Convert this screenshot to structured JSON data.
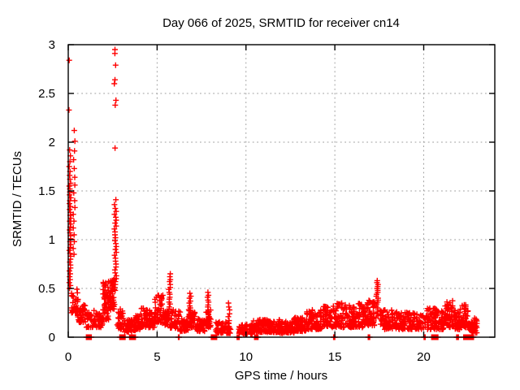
{
  "chart_data": {
    "type": "scatter",
    "title": "Day 066 of 2025, SRMTID for receiver cn14",
    "xlabel": "GPS time / hours",
    "ylabel": "SRMTID / TECUs",
    "xlim": [
      0,
      24
    ],
    "ylim": [
      0,
      3
    ],
    "xticks": [
      0,
      5,
      10,
      15,
      20
    ],
    "yticks": [
      0,
      0.5,
      1,
      1.5,
      2,
      2.5,
      3
    ],
    "grid": true,
    "legend": "none",
    "marker": {
      "shape": "plus",
      "color": "#ff0000",
      "size": 7
    },
    "axis_color": "#000000",
    "grid_color": "#9e9e9e",
    "seed": 20250066,
    "columns_format": "vertical spike columns: x center, x jitter, list of y values (TECUs)",
    "columns": [
      {
        "x": 0.07,
        "jitter": 0.03,
        "ys": [
          2.84,
          2.33
        ]
      },
      {
        "x": 0.1,
        "jitter": 0.05,
        "ys": [
          1.92,
          1.86,
          1.8,
          1.75,
          1.7,
          1.66,
          1.62,
          1.58,
          1.55,
          1.52,
          1.49,
          1.46,
          1.43,
          1.4,
          1.37,
          1.34,
          1.31,
          1.28,
          1.25,
          1.22,
          1.19,
          1.16,
          1.13,
          1.1,
          1.07,
          1.04,
          1.01,
          0.98,
          0.95,
          0.92,
          0.89,
          0.86,
          0.83,
          0.8,
          0.77,
          0.74,
          0.71,
          0.68,
          0.65,
          0.62,
          0.59,
          0.56,
          0.53,
          0.5
        ]
      },
      {
        "x": 0.33,
        "jitter": 0.05,
        "ys": [
          2.12,
          2.01,
          1.91,
          1.82,
          1.73,
          1.64,
          1.56,
          1.48,
          1.4,
          1.33,
          1.26,
          1.19,
          1.12,
          1.05,
          0.98,
          0.91,
          0.85
        ]
      },
      {
        "x": 2.65,
        "jitter": 0.06,
        "ys": [
          2.95,
          2.91,
          2.79,
          2.64,
          2.6,
          2.43,
          2.38,
          1.94,
          1.41,
          1.36,
          1.32,
          1.29,
          1.26,
          1.23,
          1.2,
          1.17,
          1.14,
          1.11,
          1.08,
          1.05,
          1.02,
          0.99,
          0.96,
          0.93,
          0.9,
          0.87,
          0.84,
          0.81,
          0.78,
          0.75,
          0.72,
          0.69,
          0.66,
          0.63,
          0.6,
          0.57,
          0.54,
          0.51,
          0.48
        ]
      },
      {
        "x": 5.7,
        "jitter": 0.06,
        "ys": [
          0.65,
          0.62,
          0.59,
          0.57,
          0.54,
          0.51,
          0.49,
          0.46,
          0.44,
          0.41,
          0.39,
          0.36,
          0.34,
          0.31,
          0.29,
          0.26,
          0.24,
          0.22
        ]
      },
      {
        "x": 6.85,
        "jitter": 0.07,
        "ys": [
          0.45,
          0.42,
          0.4,
          0.37,
          0.35,
          0.32,
          0.3,
          0.27,
          0.25,
          0.22,
          0.2
        ]
      },
      {
        "x": 7.88,
        "jitter": 0.05,
        "ys": [
          0.46,
          0.43,
          0.41,
          0.38,
          0.36,
          0.33,
          0.31,
          0.28,
          0.26,
          0.23,
          0.21,
          0.18
        ]
      },
      {
        "x": 9.05,
        "jitter": 0.05,
        "ys": [
          0.35,
          0.31,
          0.28,
          0.24,
          0.21,
          0.17,
          0.14,
          0.11
        ]
      },
      {
        "x": 17.38,
        "jitter": 0.07,
        "ys": [
          0.58,
          0.56,
          0.54,
          0.52,
          0.5,
          0.48,
          0.46,
          0.44,
          0.42,
          0.4,
          0.38,
          0.36,
          0.34,
          0.32,
          0.3,
          0.28,
          0.26,
          0.24,
          0.22,
          0.2
        ]
      }
    ],
    "bands_format": "dense noise envelope: [x_start, x_end, y_min, y_max, point_count]",
    "bands": [
      [
        0.18,
        0.55,
        0.25,
        0.5,
        30
      ],
      [
        0.5,
        1.0,
        0.15,
        0.33,
        40
      ],
      [
        1.0,
        1.6,
        0.1,
        0.28,
        40
      ],
      [
        1.6,
        1.95,
        0.1,
        0.24,
        30
      ],
      [
        1.95,
        2.3,
        0.18,
        0.58,
        55
      ],
      [
        2.3,
        2.6,
        0.28,
        0.62,
        45
      ],
      [
        2.75,
        3.1,
        0.08,
        0.3,
        35
      ],
      [
        3.1,
        3.6,
        0.05,
        0.18,
        40
      ],
      [
        3.6,
        4.05,
        0.07,
        0.22,
        40
      ],
      [
        4.05,
        4.4,
        0.1,
        0.3,
        35
      ],
      [
        4.4,
        4.85,
        0.1,
        0.28,
        40
      ],
      [
        4.85,
        5.35,
        0.14,
        0.45,
        50
      ],
      [
        5.35,
        5.65,
        0.12,
        0.3,
        28
      ],
      [
        5.75,
        6.3,
        0.08,
        0.28,
        45
      ],
      [
        6.3,
        6.75,
        0.06,
        0.2,
        40
      ],
      [
        6.75,
        7.15,
        0.1,
        0.3,
        35
      ],
      [
        7.15,
        7.75,
        0.06,
        0.2,
        45
      ],
      [
        7.75,
        8.05,
        0.1,
        0.28,
        28
      ],
      [
        8.3,
        9.15,
        0.04,
        0.16,
        55
      ],
      [
        9.6,
        10.4,
        0.03,
        0.14,
        65
      ],
      [
        10.4,
        11.1,
        0.05,
        0.18,
        65
      ],
      [
        11.1,
        11.9,
        0.05,
        0.18,
        70
      ],
      [
        11.9,
        12.7,
        0.04,
        0.16,
        70
      ],
      [
        12.7,
        13.4,
        0.06,
        0.2,
        70
      ],
      [
        13.4,
        14.3,
        0.08,
        0.28,
        75
      ],
      [
        14.3,
        15.1,
        0.1,
        0.32,
        70
      ],
      [
        15.1,
        16.0,
        0.1,
        0.35,
        75
      ],
      [
        16.0,
        16.8,
        0.1,
        0.35,
        75
      ],
      [
        16.8,
        17.25,
        0.12,
        0.38,
        50
      ],
      [
        17.55,
        18.3,
        0.08,
        0.28,
        60
      ],
      [
        18.3,
        19.1,
        0.08,
        0.26,
        65
      ],
      [
        19.1,
        19.9,
        0.08,
        0.25,
        65
      ],
      [
        19.9,
        20.7,
        0.08,
        0.3,
        60
      ],
      [
        20.7,
        21.2,
        0.08,
        0.28,
        45
      ],
      [
        21.2,
        21.7,
        0.1,
        0.38,
        50
      ],
      [
        21.7,
        22.15,
        0.08,
        0.3,
        45
      ],
      [
        22.15,
        22.55,
        0.1,
        0.34,
        40
      ],
      [
        22.55,
        23.0,
        0.04,
        0.2,
        40
      ]
    ],
    "zero_runs_format": "clusters of points at y=0 on the axis: [x_start, x_end, point_count]",
    "zero_runs": [
      [
        1.02,
        1.12,
        6
      ],
      [
        1.17,
        1.3,
        7
      ],
      [
        2.9,
        3.2,
        12
      ],
      [
        3.45,
        3.78,
        16
      ],
      [
        6.2,
        6.24,
        3
      ],
      [
        8.05,
        8.35,
        14
      ],
      [
        9.5,
        9.62,
        6
      ],
      [
        10.48,
        10.56,
        5
      ],
      [
        10.62,
        10.68,
        4
      ],
      [
        14.93,
        15.0,
        4
      ],
      [
        16.88,
        16.96,
        4
      ],
      [
        20.02,
        20.08,
        4
      ],
      [
        20.45,
        20.56,
        6
      ],
      [
        20.6,
        20.68,
        4
      ],
      [
        20.72,
        20.8,
        4
      ],
      [
        21.85,
        21.95,
        5
      ],
      [
        22.25,
        22.45,
        9
      ],
      [
        22.5,
        22.6,
        5
      ],
      [
        22.65,
        22.8,
        7
      ]
    ]
  }
}
